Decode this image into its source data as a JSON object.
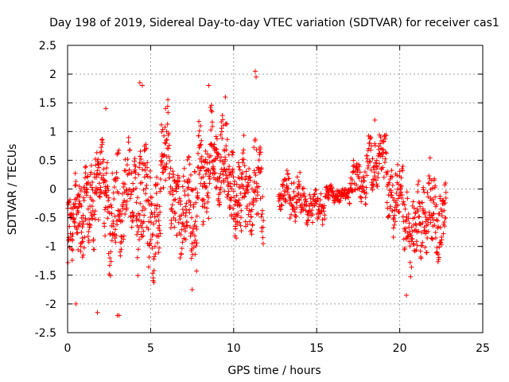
{
  "chart_data": {
    "type": "scatter",
    "title": "Day 198 of 2019, Sidereal Day-to-day VTEC variation (SDTVAR) for receiver cas1",
    "xlabel": "GPS time / hours",
    "ylabel": "SDTVAR / TECUs",
    "xlim": [
      0,
      25
    ],
    "ylim": [
      -2.5,
      2.5
    ],
    "grid": true,
    "marker": "plus",
    "color": "#ff0000",
    "xticks": [
      0,
      5,
      10,
      15,
      20,
      25
    ],
    "xtick_labels": [
      "0",
      "5",
      "10",
      "15",
      "20",
      "25"
    ],
    "yticks": [
      -2.5,
      -2,
      -1.5,
      -1,
      -0.5,
      0,
      0.5,
      1,
      1.5,
      2,
      2.5
    ],
    "ytick_labels": [
      "-2.5",
      "-2",
      "-1.5",
      "-1",
      "-0.5",
      "0",
      "0.5",
      "1",
      "1.5",
      "2",
      "2.5"
    ],
    "segments": [
      {
        "x0": 0.0,
        "x1": 0.8,
        "mean": -0.6,
        "amp": 0.8,
        "n": 70
      },
      {
        "x0": 0.8,
        "x1": 1.6,
        "mean": -0.4,
        "amp": 0.9,
        "n": 70
      },
      {
        "x0": 1.6,
        "x1": 2.4,
        "mean": 0.0,
        "amp": 0.8,
        "n": 70
      },
      {
        "x0": 2.4,
        "x1": 3.4,
        "mean": -0.4,
        "amp": 1.0,
        "n": 80
      },
      {
        "x0": 3.4,
        "x1": 4.2,
        "mean": 0.0,
        "amp": 0.8,
        "n": 60
      },
      {
        "x0": 4.2,
        "x1": 5.0,
        "mean": -0.2,
        "amp": 1.1,
        "n": 70
      },
      {
        "x0": 5.0,
        "x1": 5.6,
        "mean": -0.5,
        "amp": 0.9,
        "n": 50
      },
      {
        "x0": 5.6,
        "x1": 6.2,
        "mean": 0.6,
        "amp": 0.8,
        "n": 50
      },
      {
        "x0": 6.2,
        "x1": 7.0,
        "mean": -0.3,
        "amp": 0.9,
        "n": 60
      },
      {
        "x0": 7.0,
        "x1": 7.8,
        "mean": -0.4,
        "amp": 1.1,
        "n": 70
      },
      {
        "x0": 7.8,
        "x1": 8.6,
        "mean": 0.3,
        "amp": 0.9,
        "n": 70
      },
      {
        "x0": 8.6,
        "x1": 9.6,
        "mean": 0.5,
        "amp": 0.8,
        "n": 90
      },
      {
        "x0": 9.6,
        "x1": 10.6,
        "mean": -0.1,
        "amp": 0.8,
        "n": 90
      },
      {
        "x0": 10.6,
        "x1": 11.8,
        "mean": 0.0,
        "amp": 0.8,
        "n": 90
      },
      {
        "x0": 12.7,
        "x1": 14.0,
        "mean": -0.1,
        "amp": 0.45,
        "n": 80
      },
      {
        "x0": 14.0,
        "x1": 15.5,
        "mean": -0.3,
        "amp": 0.3,
        "n": 80
      },
      {
        "x0": 15.5,
        "x1": 17.0,
        "mean": -0.1,
        "amp": 0.15,
        "n": 80
      },
      {
        "x0": 17.0,
        "x1": 18.0,
        "mean": 0.1,
        "amp": 0.4,
        "n": 60
      },
      {
        "x0": 18.0,
        "x1": 19.2,
        "mean": 0.5,
        "amp": 0.5,
        "n": 80
      },
      {
        "x0": 19.2,
        "x1": 20.2,
        "mean": -0.1,
        "amp": 0.6,
        "n": 70
      },
      {
        "x0": 20.2,
        "x1": 21.2,
        "mean": -0.7,
        "amp": 0.7,
        "n": 70
      },
      {
        "x0": 21.2,
        "x1": 22.0,
        "mean": -0.4,
        "amp": 0.8,
        "n": 60
      },
      {
        "x0": 22.0,
        "x1": 22.8,
        "mean": -0.5,
        "amp": 0.7,
        "n": 60
      }
    ],
    "extremes": [
      {
        "x": 3.0,
        "y": -2.2
      },
      {
        "x": 3.1,
        "y": -2.2
      },
      {
        "x": 1.8,
        "y": -2.15
      },
      {
        "x": 0.5,
        "y": -2.0
      },
      {
        "x": 4.35,
        "y": 1.85
      },
      {
        "x": 4.5,
        "y": 1.8
      },
      {
        "x": 8.5,
        "y": 1.8
      },
      {
        "x": 11.3,
        "y": 2.05
      },
      {
        "x": 11.35,
        "y": 1.95
      },
      {
        "x": 7.5,
        "y": -1.75
      },
      {
        "x": 20.4,
        "y": -1.85
      },
      {
        "x": 2.3,
        "y": 1.4
      },
      {
        "x": 5.9,
        "y": 1.4
      },
      {
        "x": 9.5,
        "y": 1.6
      },
      {
        "x": 18.5,
        "y": 1.2
      }
    ]
  }
}
